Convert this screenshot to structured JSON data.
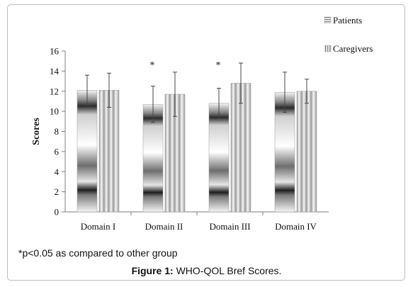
{
  "chart_data": {
    "type": "bar",
    "title": "",
    "xlabel": "",
    "ylabel": "Scores",
    "ylim": [
      0,
      16
    ],
    "yticks": [
      0,
      2,
      4,
      6,
      8,
      10,
      12,
      14,
      16
    ],
    "grid": false,
    "legend_position": "top-right",
    "categories": [
      "Domain I",
      "Domain II",
      "Domain III",
      "Domain IV"
    ],
    "series": [
      {
        "name": "Patients",
        "values": [
          12.1,
          10.7,
          10.8,
          11.9
        ],
        "error": [
          1.5,
          1.8,
          1.5,
          2.0
        ],
        "pattern": "horizontal-stripes"
      },
      {
        "name": "Caregivers",
        "values": [
          12.1,
          11.7,
          12.8,
          12.0
        ],
        "error": [
          1.7,
          2.2,
          2.0,
          1.2
        ],
        "pattern": "vertical-stripes"
      }
    ],
    "annotations": [
      {
        "text": "*",
        "category": "Domain II",
        "series": "Patients"
      },
      {
        "text": "*",
        "category": "Domain III",
        "series": "Patients"
      }
    ]
  },
  "footnote": "*p<0.05 as compared to other group",
  "caption": {
    "label": "Figure 1:",
    "text": " WHO-QOL Bref Scores."
  }
}
